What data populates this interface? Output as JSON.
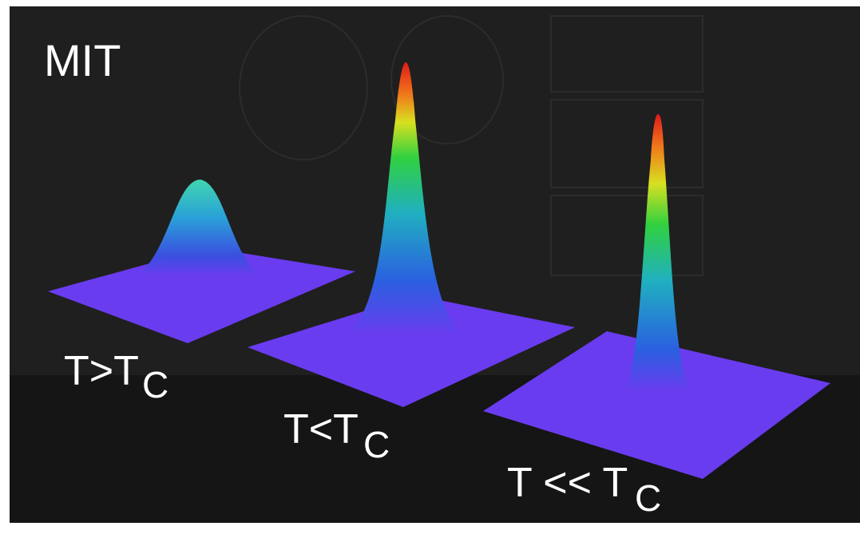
{
  "labels": {
    "org": "MIT",
    "panels": [
      {
        "main": "T>T",
        "sub": "C"
      },
      {
        "main": "T<T",
        "sub": "C"
      },
      {
        "main": "T << T",
        "sub": "C"
      }
    ]
  }
}
